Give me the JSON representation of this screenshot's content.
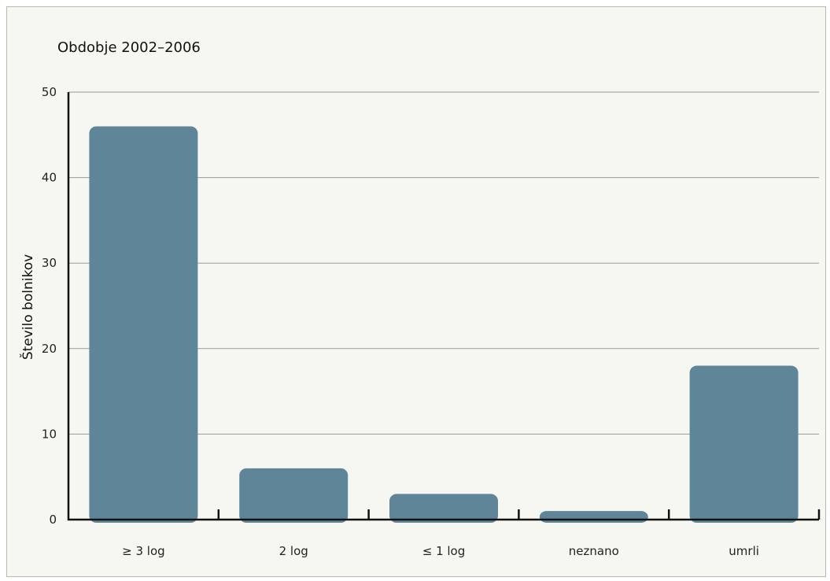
{
  "chart_data": {
    "type": "bar",
    "title": "Obdobje 2002–2006",
    "xlabel": "",
    "ylabel": "Število bolnikov",
    "categories": [
      "≥ 3 log",
      "2 log",
      "≤ 1 log",
      "neznano",
      "umrli"
    ],
    "values": [
      46,
      6,
      3,
      1,
      18
    ],
    "ylim": [
      0,
      50
    ],
    "yticks": [
      0,
      10,
      20,
      30,
      40,
      50
    ],
    "grid": true,
    "legend": "none",
    "bar_color": "#5f8598"
  }
}
